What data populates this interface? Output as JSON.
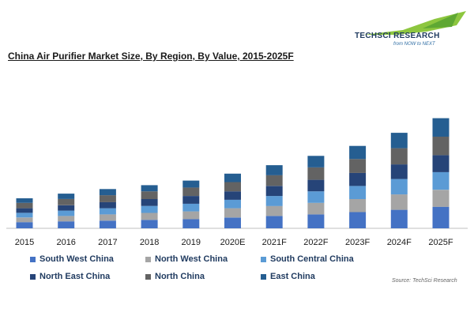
{
  "brand": {
    "name": "TECHSCI RESEARCH",
    "tagline": "from NOW to NEXT"
  },
  "chart_data": {
    "type": "bar",
    "stacked": true,
    "title": "China Air Purifier Market Size, By Region, By Value, 2015-2025F",
    "xlabel": "",
    "ylabel": "",
    "categories": [
      "2015",
      "2016",
      "2017",
      "2018",
      "2019",
      "2020E",
      "2021F",
      "2022F",
      "2023F",
      "2024F",
      "2025F"
    ],
    "ylim": [
      0,
      160
    ],
    "grid": false,
    "legend_position": "bottom",
    "series": [
      {
        "name": "South West China",
        "color": "#4472c4",
        "values": [
          8,
          9,
          10,
          11,
          12,
          14,
          16,
          18,
          21,
          24,
          28
        ]
      },
      {
        "name": "North West China",
        "color": "#a5a5a5",
        "values": [
          6,
          7,
          8,
          9,
          10,
          12,
          13,
          15,
          17,
          20,
          22
        ]
      },
      {
        "name": "South Central China",
        "color": "#5b9bd5",
        "values": [
          6,
          7,
          8,
          9,
          10,
          11,
          13,
          15,
          17,
          20,
          23
        ]
      },
      {
        "name": "North East China",
        "color": "#264478",
        "values": [
          6,
          7,
          8,
          9,
          10,
          11,
          13,
          15,
          17,
          19,
          22
        ]
      },
      {
        "name": "North China",
        "color": "#636363",
        "values": [
          7,
          8,
          9,
          10,
          11,
          12,
          14,
          16,
          18,
          21,
          24
        ]
      },
      {
        "name": "East China",
        "color": "#255e91",
        "values": [
          6,
          7,
          8,
          8,
          9,
          11,
          13,
          15,
          17,
          20,
          24
        ]
      }
    ]
  },
  "source": "Source: TechSci Research"
}
